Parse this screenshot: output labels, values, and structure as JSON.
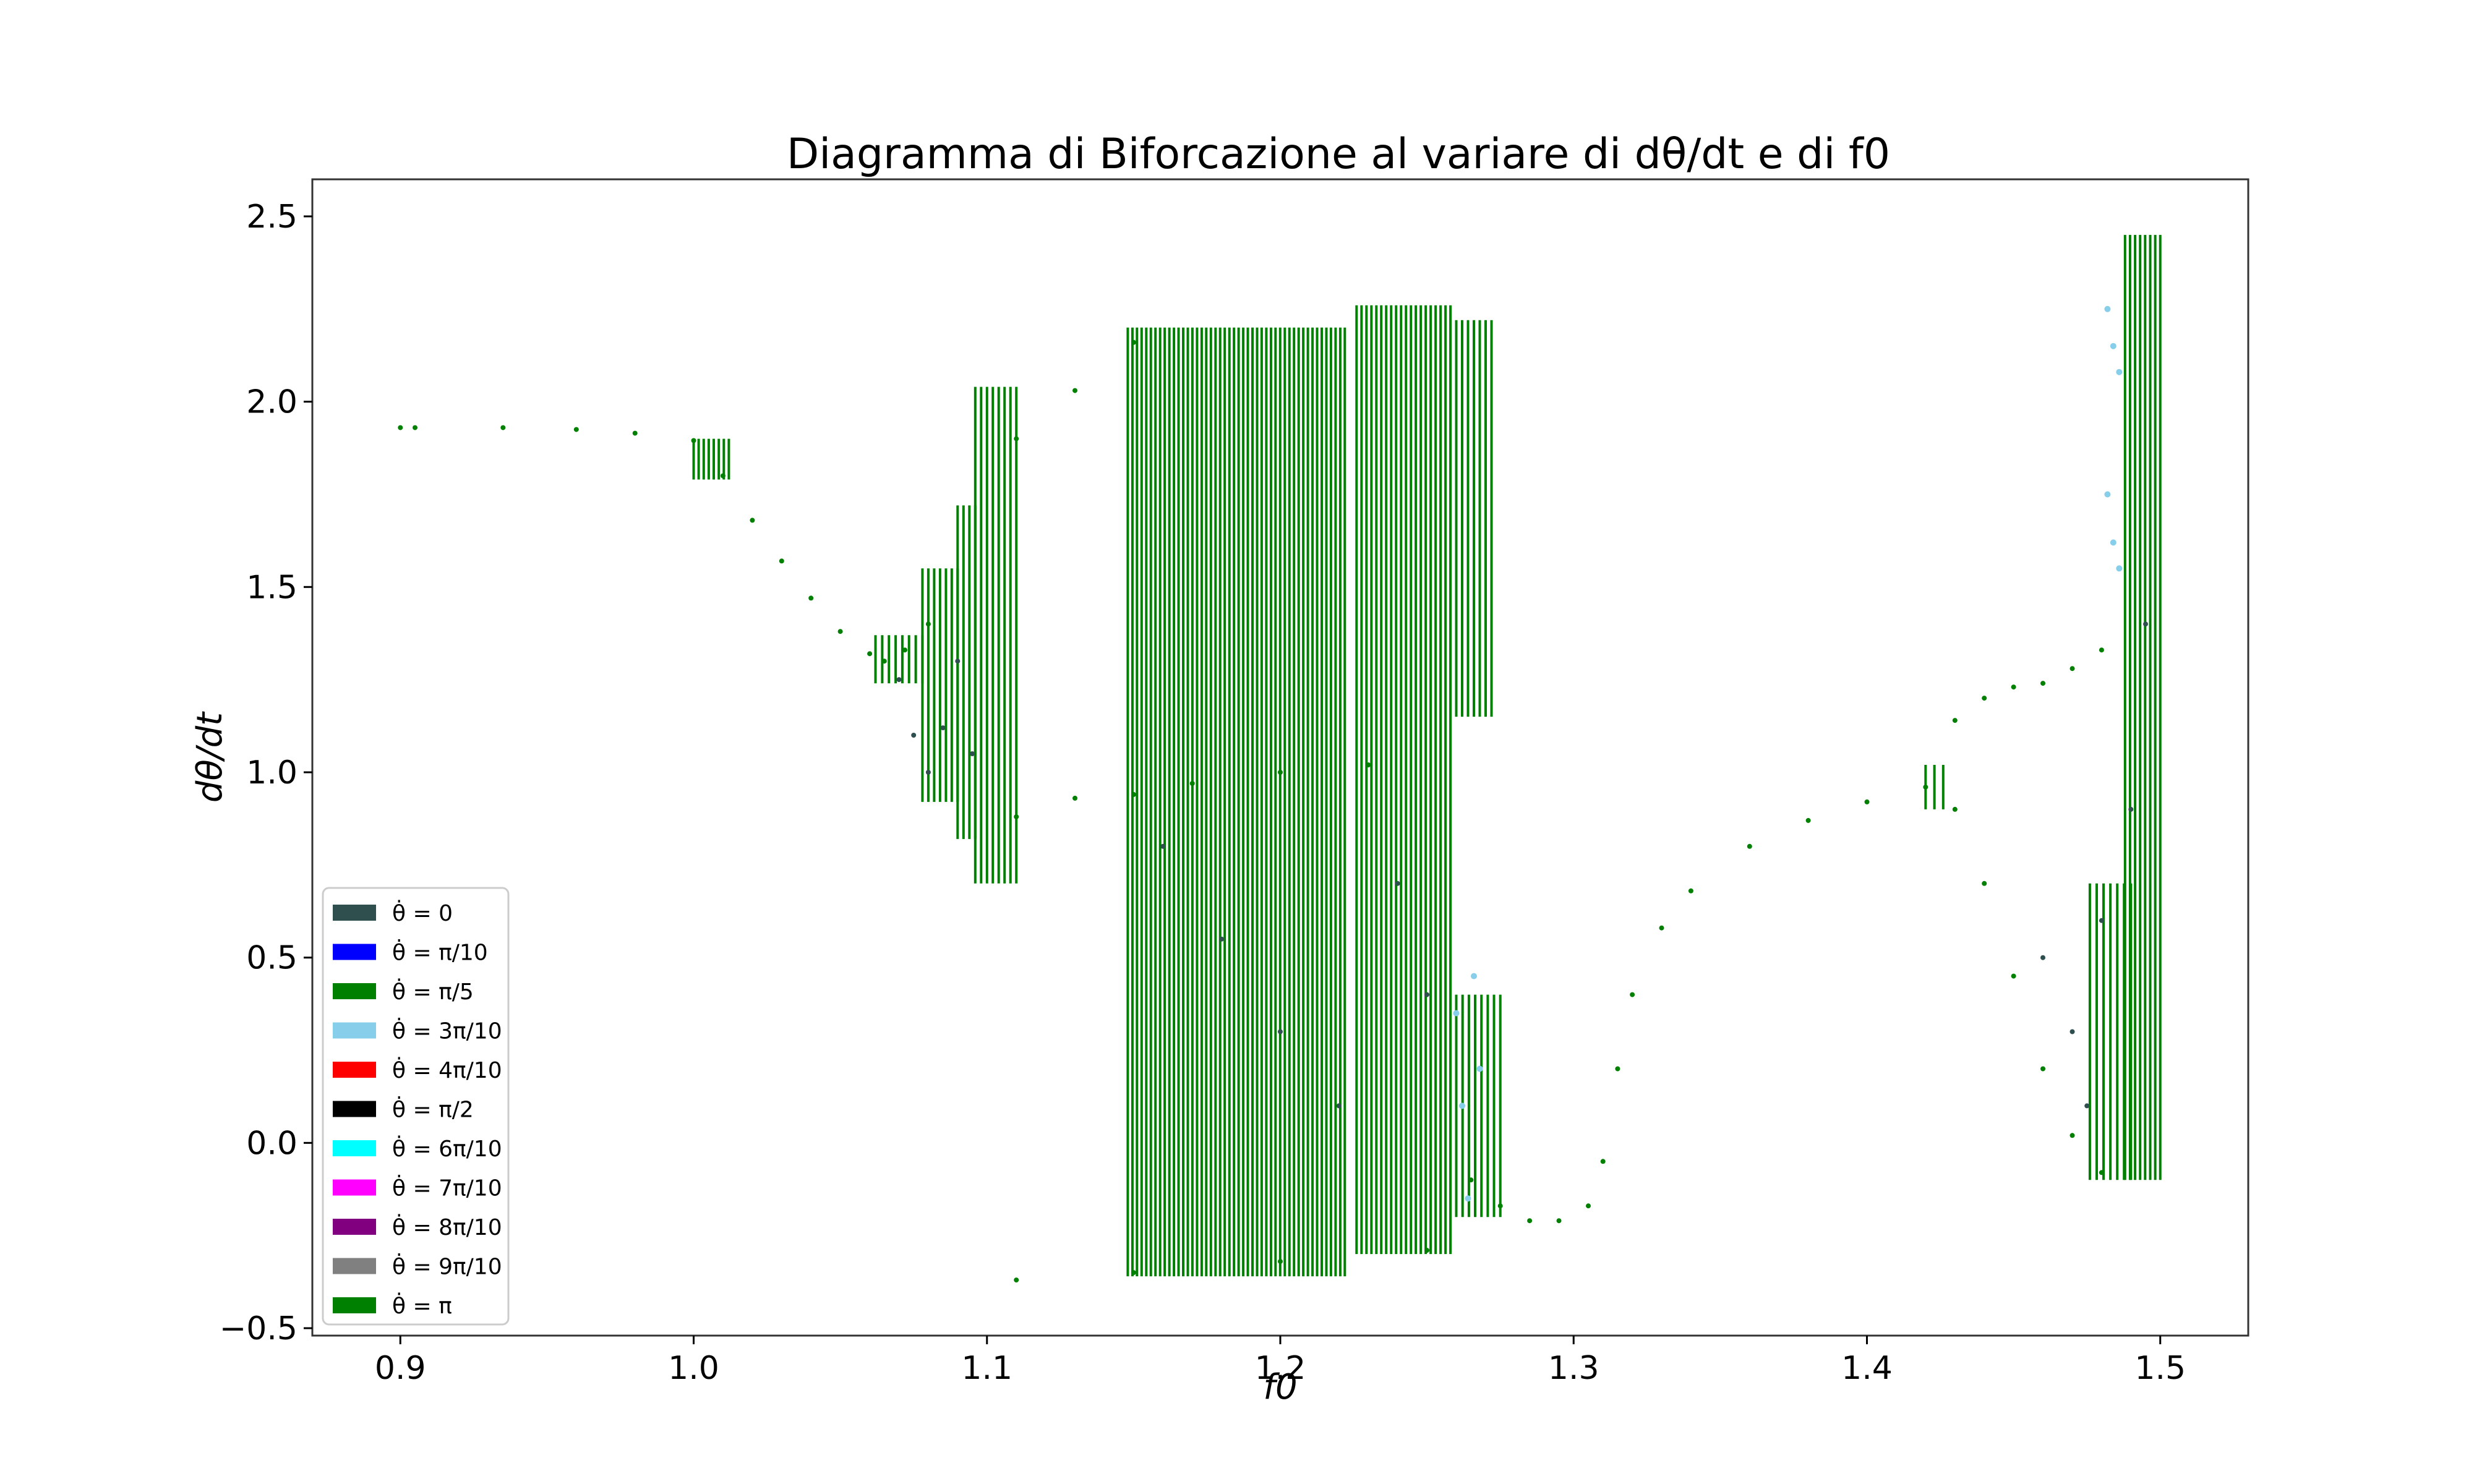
{
  "chart_data": {
    "type": "scatter",
    "title": "Diagramma di Biforcazione al variare di dθ/dt e di f0",
    "xlabel": "f0",
    "ylabel": "dθ/dt",
    "xlim": [
      0.87,
      1.53
    ],
    "ylim": [
      -0.52,
      2.6
    ],
    "x_ticks": [
      0.9,
      1.0,
      1.1,
      1.2,
      1.3,
      1.4,
      1.5
    ],
    "x_tick_labels": [
      "0.9",
      "1.0",
      "1.1",
      "1.2",
      "1.3",
      "1.4",
      "1.5"
    ],
    "y_ticks": [
      -0.5,
      0.0,
      0.5,
      1.0,
      1.5,
      2.0,
      2.5
    ],
    "y_tick_labels": [
      "−0.5",
      "0.0",
      "0.5",
      "1.0",
      "1.5",
      "2.0",
      "2.5"
    ],
    "grid": false,
    "legend_position": "lower-left",
    "legend": [
      {
        "label": "θ̇ = 0",
        "color": "#2f4f4f"
      },
      {
        "label": "θ̇ = π/10",
        "color": "#0000ff"
      },
      {
        "label": "θ̇ = π/5",
        "color": "#008000"
      },
      {
        "label": "θ̇ = 3π/10",
        "color": "#87ceeb"
      },
      {
        "label": "θ̇ = 4π/10",
        "color": "#ff0000"
      },
      {
        "label": "θ̇ = π/2",
        "color": "#000000"
      },
      {
        "label": "θ̇ = 6π/10",
        "color": "#00ffff"
      },
      {
        "label": "θ̇ = 7π/10",
        "color": "#ff00ff"
      },
      {
        "label": "θ̇ = 8π/10",
        "color": "#800080"
      },
      {
        "label": "θ̇ = 9π/10",
        "color": "#808080"
      },
      {
        "label": "θ̇ = π",
        "color": "#008000"
      }
    ],
    "series_points": {
      "green": [
        [
          0.9,
          1.93
        ],
        [
          0.905,
          1.93
        ],
        [
          0.935,
          1.93
        ],
        [
          0.96,
          1.925
        ],
        [
          0.98,
          1.915
        ],
        [
          1.0,
          1.895
        ],
        [
          1.01,
          1.8
        ],
        [
          1.02,
          1.68
        ],
        [
          1.03,
          1.57
        ],
        [
          1.04,
          1.47
        ],
        [
          1.05,
          1.38
        ],
        [
          1.06,
          1.32
        ],
        [
          1.065,
          1.3
        ],
        [
          1.072,
          1.33
        ],
        [
          1.08,
          1.4
        ],
        [
          1.11,
          0.88
        ],
        [
          1.13,
          0.93
        ],
        [
          1.15,
          0.94
        ],
        [
          1.17,
          0.97
        ],
        [
          1.2,
          1.0
        ],
        [
          1.23,
          1.02
        ],
        [
          1.11,
          1.9
        ],
        [
          1.13,
          2.03
        ],
        [
          1.15,
          2.16
        ],
        [
          1.11,
          -0.37
        ],
        [
          1.15,
          -0.35
        ],
        [
          1.2,
          -0.32
        ],
        [
          1.25,
          -0.29
        ],
        [
          1.265,
          -0.1
        ],
        [
          1.275,
          -0.17
        ],
        [
          1.285,
          -0.21
        ],
        [
          1.295,
          -0.21
        ],
        [
          1.305,
          -0.17
        ],
        [
          1.31,
          -0.05
        ],
        [
          1.315,
          0.2
        ],
        [
          1.32,
          0.4
        ],
        [
          1.33,
          0.58
        ],
        [
          1.34,
          0.68
        ],
        [
          1.36,
          0.8
        ],
        [
          1.38,
          0.87
        ],
        [
          1.4,
          0.92
        ],
        [
          1.42,
          0.96
        ],
        [
          1.43,
          1.14
        ],
        [
          1.44,
          1.2
        ],
        [
          1.45,
          1.23
        ],
        [
          1.46,
          1.24
        ],
        [
          1.47,
          1.28
        ],
        [
          1.48,
          1.33
        ],
        [
          1.43,
          0.9
        ],
        [
          1.44,
          0.7
        ],
        [
          1.45,
          0.45
        ],
        [
          1.46,
          0.2
        ],
        [
          1.47,
          0.02
        ],
        [
          1.48,
          -0.08
        ]
      ],
      "slate": [
        [
          1.07,
          1.25
        ],
        [
          1.075,
          1.1
        ],
        [
          1.08,
          1.0
        ],
        [
          1.085,
          1.12
        ],
        [
          1.09,
          1.3
        ],
        [
          1.095,
          1.05
        ],
        [
          1.16,
          0.8
        ],
        [
          1.18,
          0.55
        ],
        [
          1.2,
          0.3
        ],
        [
          1.22,
          0.1
        ],
        [
          1.24,
          0.7
        ],
        [
          1.25,
          0.4
        ],
        [
          1.46,
          0.5
        ],
        [
          1.47,
          0.3
        ],
        [
          1.475,
          0.1
        ],
        [
          1.48,
          0.6
        ],
        [
          1.49,
          0.9
        ],
        [
          1.495,
          1.4
        ]
      ],
      "skyblue": [
        [
          1.26,
          0.35
        ],
        [
          1.262,
          0.1
        ],
        [
          1.264,
          -0.15
        ],
        [
          1.266,
          0.45
        ],
        [
          1.268,
          0.2
        ],
        [
          1.482,
          2.25
        ],
        [
          1.484,
          2.15
        ],
        [
          1.486,
          2.08
        ],
        [
          1.482,
          1.75
        ],
        [
          1.484,
          1.62
        ],
        [
          1.486,
          1.55
        ]
      ]
    },
    "vertical_segments_green": [
      {
        "x_range": [
          1.0,
          1.012
        ],
        "count": 8,
        "ymin": 1.79,
        "ymax": 1.9
      },
      {
        "x_range": [
          1.062,
          1.078
        ],
        "count": 8,
        "ymin": 1.24,
        "ymax": 1.37
      },
      {
        "x_range": [
          1.078,
          1.09
        ],
        "count": 7,
        "ymin": 0.92,
        "ymax": 1.55
      },
      {
        "x_range": [
          1.09,
          1.096
        ],
        "count": 4,
        "ymin": 0.82,
        "ymax": 1.72
      },
      {
        "x_range": [
          1.096,
          1.11
        ],
        "count": 8,
        "ymin": 0.7,
        "ymax": 2.04
      },
      {
        "x_range": [
          1.148,
          1.222
        ],
        "count": 48,
        "ymin": -0.36,
        "ymax": 2.2
      },
      {
        "x_range": [
          1.226,
          1.258
        ],
        "count": 20,
        "ymin": -0.3,
        "ymax": 2.26
      },
      {
        "x_range": [
          1.26,
          1.272
        ],
        "count": 7,
        "ymin": 1.15,
        "ymax": 2.22
      },
      {
        "x_range": [
          1.26,
          1.275
        ],
        "count": 8,
        "ymin": -0.2,
        "ymax": 0.4
      },
      {
        "x_range": [
          1.42,
          1.426
        ],
        "count": 3,
        "ymin": 0.9,
        "ymax": 1.02
      },
      {
        "x_range": [
          1.476,
          1.49
        ],
        "count": 7,
        "ymin": -0.1,
        "ymax": 0.7
      },
      {
        "x_range": [
          1.488,
          1.5
        ],
        "count": 8,
        "ymin": -0.1,
        "ymax": 2.45
      }
    ]
  }
}
